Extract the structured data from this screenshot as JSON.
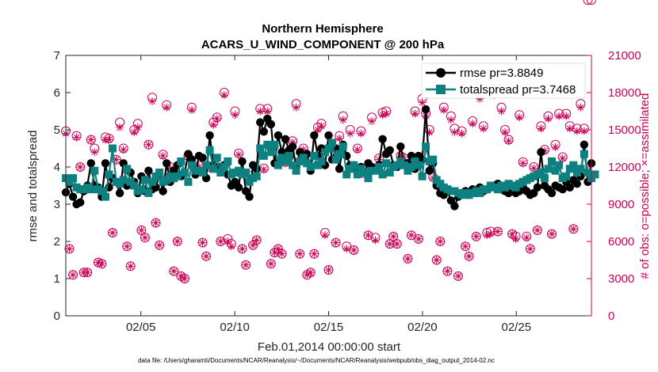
{
  "chart_data": {
    "type": "line",
    "title": "Northern Hemisphere",
    "subtitle": "ACARS_U_WIND_COMPONENT @ 200 hPa",
    "xlabel": "Feb.01,2014 00:00:00 start",
    "ylabel_left": "rmse and totalspread",
    "ylabel_right": "# of obs: o=possible; ×=assimilated",
    "footnote": "data file: /Users/gharamti/Documents/NCAR/Reanalysis/~/Documents/NCAR/Reanalysis/webpub/obs_diag_output_2014-02.nc",
    "x_ticks": [
      {
        "day": 5,
        "label": "02/05"
      },
      {
        "day": 10,
        "label": "02/10"
      },
      {
        "day": 15,
        "label": "02/15"
      },
      {
        "day": 20,
        "label": "02/20"
      },
      {
        "day": 25,
        "label": "02/25"
      }
    ],
    "xlim": [
      1.0,
      29.0
    ],
    "ylim_left": [
      0,
      7
    ],
    "y_ticks_left": [
      "0",
      "1",
      "2",
      "3",
      "4",
      "5",
      "6",
      "7"
    ],
    "ylim_right": [
      0,
      21000
    ],
    "y_ticks_right": [
      "0",
      "3000",
      "6000",
      "9000",
      "12000",
      "15000",
      "18000",
      "21000"
    ],
    "colors": {
      "rmse": "#000000",
      "spread": "#0e8080",
      "obs": "#cc0055",
      "axis": "#262626"
    },
    "legend": {
      "placement": "top-right",
      "entries": [
        {
          "key": "rmse",
          "label": "rmse pr=3.8849"
        },
        {
          "key": "spread",
          "label": "totalspread pr=3.7468"
        }
      ]
    },
    "series": [
      {
        "name": "rmse",
        "values": [
          3.32,
          3.55,
          3.2,
          3.0,
          3.05,
          3.35,
          3.5,
          4.1,
          3.5,
          3.45,
          3.2,
          4.1,
          3.45,
          3.7,
          3.6,
          3.3,
          4.1,
          3.5,
          3.85,
          3.6,
          3.3,
          3.75,
          3.35,
          3.9,
          3.4,
          3.45,
          3.8,
          3.35,
          4.1,
          3.6,
          3.9,
          4.05,
          3.75,
          3.85,
          4.35,
          4.2,
          3.8,
          4.3,
          4.25,
          3.7,
          4.85,
          4.05,
          3.95,
          4.0,
          4.05,
          3.8,
          3.5,
          3.6,
          3.45,
          4.15,
          3.35,
          3.2,
          4.05,
          3.95,
          5.2,
          4.95,
          5.3,
          5.15,
          4.1,
          4.85,
          4.4,
          4.75,
          4.45,
          4.55,
          4.0,
          4.4,
          4.2,
          4.35,
          3.9,
          4.85,
          4.3,
          4.5,
          4.05,
          4.85,
          4.2,
          4.5,
          3.95,
          4.6,
          4.3,
          4.05,
          4.05,
          3.9,
          4.0,
          3.85,
          4.1,
          4.0,
          3.95,
          4.05,
          4.75,
          4.35,
          4.45,
          4.05,
          4.0,
          4.55,
          4.1,
          4.1,
          4.3,
          3.95,
          4.3,
          4.2,
          5.55,
          3.9,
          4.1,
          3.5,
          3.3,
          3.25,
          3.35,
          3.1,
          2.95,
          3.2,
          3.3,
          3.35,
          3.25,
          3.4,
          3.3,
          3.45,
          3.35,
          3.4,
          3.45,
          3.5,
          3.55,
          3.4,
          3.35,
          3.3,
          3.5,
          3.3,
          3.35,
          3.45,
          3.35,
          3.25,
          3.3,
          3.45,
          4.4,
          3.5,
          3.4,
          3.3,
          3.5,
          3.45,
          3.4,
          3.6,
          3.45,
          3.65,
          3.55,
          3.75,
          4.6,
          3.6,
          4.1
        ]
      },
      {
        "name": "totalspread",
        "values": [
          3.7,
          3.6,
          3.7,
          3.45,
          3.4,
          3.4,
          3.45,
          3.4,
          3.9,
          3.4,
          3.35,
          3.2,
          3.8,
          4.5,
          3.6,
          3.55,
          3.65,
          3.95,
          3.6,
          3.5,
          3.35,
          3.4,
          3.65,
          3.3,
          3.6,
          3.75,
          3.85,
          3.6,
          3.65,
          3.75,
          3.7,
          3.75,
          4.15,
          3.85,
          3.6,
          4.05,
          3.9,
          3.9,
          3.85,
          4.05,
          4.45,
          3.95,
          4.25,
          3.85,
          4.0,
          4.15,
          3.8,
          3.85,
          3.9,
          3.8,
          3.85,
          3.6,
          3.7,
          3.75,
          4.5,
          4.3,
          4.6,
          4.4,
          4.6,
          4.05,
          4.25,
          4.15,
          4.3,
          4.05,
          3.9,
          4.15,
          4.25,
          4.1,
          4.0,
          4.3,
          4.05,
          4.15,
          4.4,
          4.5,
          4.65,
          4.2,
          4.35,
          4.55,
          3.8,
          3.95,
          4.05,
          3.8,
          3.95,
          3.85,
          3.7,
          3.9,
          3.9,
          4.0,
          3.8,
          4.1,
          3.85,
          4.0,
          4.05,
          4.15,
          4.05,
          3.9,
          4.0,
          4.15,
          4.05,
          3.75,
          4.55,
          4.15,
          4.2,
          3.65,
          3.55,
          3.45,
          3.4,
          3.35,
          3.35,
          3.3,
          3.25,
          3.3,
          3.25,
          3.3,
          3.35,
          3.3,
          3.4,
          3.4,
          3.5,
          3.45,
          3.4,
          3.5,
          3.45,
          3.55,
          3.5,
          3.45,
          3.55,
          3.6,
          3.65,
          3.7,
          3.75,
          3.8,
          3.85,
          3.7,
          3.95,
          4.15,
          3.9,
          4.05,
          3.7,
          3.75,
          3.95,
          4.05,
          3.85,
          3.95,
          4.35,
          3.85,
          3.7,
          3.8
        ]
      },
      {
        "name": "obs_possible",
        "values": [
          14900,
          5400,
          3300,
          14500,
          12000,
          3500,
          3500,
          14200,
          13500,
          4300,
          4200,
          14400,
          14300,
          6700,
          12600,
          15600,
          13500,
          5600,
          4000,
          15000,
          15500,
          6900,
          6300,
          13800,
          17600,
          7500,
          5700,
          13000,
          17000,
          12000,
          3600,
          6000,
          3200,
          3000,
          12900,
          16800,
          11900,
          12100,
          5900,
          4800,
          12000,
          15600,
          16000,
          6000,
          18000,
          6200,
          5800,
          16500,
          13100,
          5400,
          4100,
          11300,
          5700,
          6100,
          16700,
          11900,
          16700,
          4200,
          5100,
          5400,
          5000,
          12400,
          12800,
          14100,
          17100,
          5000,
          13500,
          3300,
          3500,
          5000,
          15200,
          15500,
          6700,
          3700,
          13600,
          5900,
          14500,
          16100,
          5600,
          15000,
          5300,
          13500,
          14900,
          11500,
          6500,
          16000,
          6300,
          12700,
          16400,
          16500,
          5800,
          6400,
          5800,
          12900,
          12700,
          4600,
          6500,
          16500,
          6200,
          17500,
          16300,
          15000,
          11200,
          4500,
          6000,
          16800,
          3600,
          16100,
          15100,
          3200,
          14900,
          5600,
          4800,
          15700,
          6400,
          17800,
          15300,
          6700,
          6800,
          18000,
          6800,
          16800,
          15000,
          14200,
          6600,
          6400,
          16200,
          12400,
          6400,
          5400,
          12000,
          6900,
          15300,
          13400,
          16100,
          6600,
          13800,
          16300,
          12800,
          16300,
          15300,
          7000,
          15100,
          17100,
          15100
        ]
      },
      {
        "name": "obs_assimilated",
        "values": [
          14700,
          5400,
          3300,
          14400,
          12000,
          3500,
          3500,
          14200,
          13200,
          4300,
          4200,
          14200,
          14200,
          6700,
          12600,
          15200,
          13400,
          5600,
          4000,
          14800,
          15200,
          6900,
          6300,
          13800,
          17300,
          7500,
          5700,
          12900,
          16800,
          11900,
          3600,
          6000,
          3200,
          3000,
          12800,
          16600,
          11900,
          12000,
          5900,
          4800,
          11900,
          15400,
          15900,
          6000,
          17800,
          6000,
          5600,
          16200,
          13000,
          5400,
          4100,
          11200,
          5700,
          6100,
          16500,
          11800,
          16500,
          4200,
          5100,
          5400,
          5000,
          12300,
          12700,
          14000,
          16800,
          5000,
          13400,
          3300,
          3500,
          5000,
          15000,
          15300,
          6500,
          3700,
          13400,
          5900,
          14300,
          15800,
          5400,
          14700,
          5300,
          13400,
          14700,
          11400,
          6500,
          15700,
          6100,
          12600,
          16200,
          16300,
          5800,
          6400,
          5800,
          12800,
          12600,
          4600,
          6500,
          16300,
          6200,
          17200,
          16100,
          14800,
          11100,
          4500,
          6000,
          16600,
          3600,
          15800,
          14800,
          3200,
          14700,
          5600,
          4800,
          15500,
          6400,
          17500,
          15100,
          6500,
          6600,
          17800,
          6800,
          16500,
          14800,
          14100,
          6600,
          6200,
          16000,
          12300,
          6300,
          5400,
          11900,
          6900,
          15100,
          13300,
          15900,
          6600,
          13600,
          16100,
          12700,
          16100,
          15100,
          7000,
          14900,
          16800,
          14900
        ]
      }
    ]
  }
}
